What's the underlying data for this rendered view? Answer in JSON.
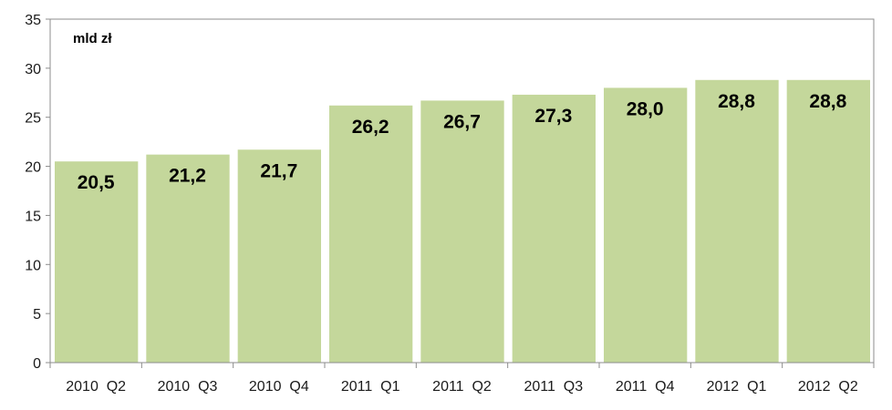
{
  "chart_data": {
    "type": "bar",
    "unit_label": "mld zł",
    "categories": [
      "2010  Q2",
      "2010  Q3",
      "2010  Q4",
      "2011  Q1",
      "2011  Q2",
      "2011  Q3",
      "2011  Q4",
      "2012  Q1",
      "2012  Q2"
    ],
    "values": [
      20.5,
      21.2,
      21.7,
      26.2,
      26.7,
      27.3,
      28.0,
      28.8,
      28.8
    ],
    "data_labels": [
      "20,5",
      "21,2",
      "21,7",
      "26,2",
      "26,7",
      "27,3",
      "28,0",
      "28,8",
      "28,8"
    ],
    "y_ticks": [
      "0",
      "5",
      "10",
      "15",
      "20",
      "25",
      "30",
      "35"
    ],
    "ylim": [
      0,
      35
    ],
    "title": "",
    "xlabel": "",
    "ylabel": "",
    "grid": false,
    "legend": "none",
    "colors": {
      "bar": "#c4d79b",
      "plot_border": "#8c8c8c",
      "axis": "#8c8c8c"
    }
  }
}
